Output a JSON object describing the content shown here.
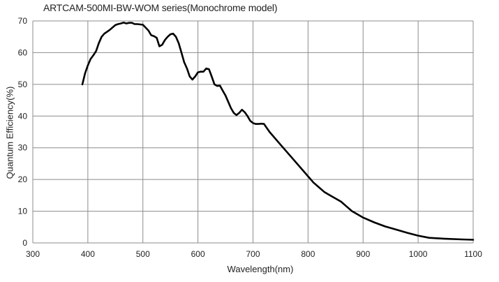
{
  "chart_data": {
    "type": "line",
    "title": "ARTCAM-500MI-BW-WOM series(Monochrome model)",
    "xlabel": "Wavelength(nm)",
    "ylabel": "Quantum Efficiency(%)",
    "xlim": [
      300,
      1100
    ],
    "ylim": [
      0,
      70
    ],
    "xticks": [
      "300",
      "400",
      "500",
      "600",
      "700",
      "800",
      "900",
      "1000",
      "1100"
    ],
    "yticks": [
      "0",
      "10",
      "20",
      "30",
      "40",
      "50",
      "60",
      "70"
    ],
    "grid": true,
    "line_color": "#000000",
    "series": [
      {
        "x": [
          390,
          395,
          400,
          405,
          410,
          415,
          420,
          425,
          430,
          435,
          440,
          450,
          455,
          460,
          465,
          470,
          475,
          480,
          485,
          490,
          500,
          510,
          515,
          520,
          525,
          530,
          535,
          540,
          545,
          550,
          555,
          560,
          565,
          570,
          575,
          580,
          585,
          590,
          595,
          600,
          605,
          610,
          615,
          620,
          625,
          630,
          635,
          640,
          645,
          650,
          655,
          660,
          665,
          670,
          675,
          680,
          685,
          690,
          695,
          700,
          705,
          710,
          715,
          720,
          730,
          750,
          770,
          790,
          800,
          810,
          820,
          830,
          840,
          850,
          860,
          870,
          880,
          890,
          900,
          920,
          940,
          960,
          980,
          1000,
          1020,
          1050,
          1080,
          1100
        ],
        "y": [
          50,
          53.5,
          56,
          58,
          59.2,
          60.5,
          63,
          65,
          66,
          66.6,
          67.2,
          68.7,
          69,
          69.2,
          69.5,
          69.2,
          69.4,
          69.4,
          69,
          69,
          68.8,
          67,
          65.5,
          65.2,
          64.7,
          62,
          62.5,
          64,
          65,
          65.8,
          66,
          65,
          63,
          60,
          57,
          55,
          52.5,
          51.5,
          52.5,
          53.8,
          54,
          54,
          55,
          54.8,
          52.5,
          50,
          49.5,
          49.6,
          48,
          46.5,
          44.5,
          42.5,
          41,
          40.3,
          41,
          42,
          41.2,
          40,
          38.5,
          37.8,
          37.5,
          37.5,
          37.6,
          37.5,
          35,
          31,
          27,
          23,
          21,
          19,
          17.5,
          16,
          15,
          14,
          13,
          11.5,
          10,
          9,
          8,
          6.5,
          5.2,
          4.2,
          3.2,
          2.3,
          1.6,
          1.3,
          1.1,
          1.0
        ]
      }
    ]
  }
}
